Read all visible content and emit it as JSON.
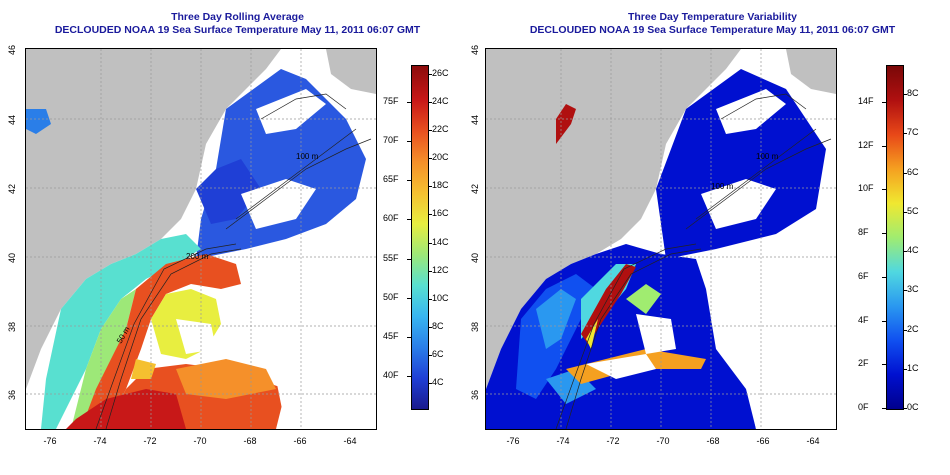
{
  "left_panel": {
    "title_line1": "Three Day Rolling Average",
    "title_line2": "DECLOUDED NOAA 19 Sea Surface Temperature May 11, 2011 06:07 GMT",
    "colorbar_c_labels": [
      "26C",
      "24C",
      "22C",
      "20C",
      "18C",
      "16C",
      "14C",
      "12C",
      "10C",
      "8C",
      "6C",
      "4C"
    ],
    "colorbar_f_labels": [
      "75F",
      "70F",
      "65F",
      "60F",
      "55F",
      "50F",
      "45F",
      "40F"
    ],
    "colors": [
      "#1a1a8c",
      "#1f3fd6",
      "#2a7ee8",
      "#38b6f0",
      "#58e0d0",
      "#9de878",
      "#e8ee40",
      "#f5c030",
      "#f5902a",
      "#e85020",
      "#c81818",
      "#8c0c0c"
    ]
  },
  "right_panel": {
    "title_line1": "Three Day Temperature Variability",
    "title_line2": "DECLOUDED NOAA 19 Sea Surface Temperature May 11, 2011 06:07 GMT",
    "colorbar_c_labels": [
      "8C",
      "7C",
      "6C",
      "5C",
      "4C",
      "3C",
      "2C",
      "1C",
      "0C"
    ],
    "colorbar_f_labels": [
      "14F",
      "12F",
      "10F",
      "8F",
      "6F",
      "4F",
      "2F",
      "0F"
    ],
    "colors": [
      "#00008c",
      "#0010d0",
      "#1050f0",
      "#2a98f0",
      "#50d8e0",
      "#a0ec70",
      "#f0e830",
      "#f5a020",
      "#e84818",
      "#b01010",
      "#7a0808"
    ]
  },
  "x_ticks": [
    "-76",
    "-74",
    "-72",
    "-70",
    "-68",
    "-66",
    "-64"
  ],
  "y_ticks": [
    "36",
    "38",
    "40",
    "42",
    "44",
    "46"
  ],
  "contour_labels": [
    "100 m",
    "200 m",
    "50 m"
  ]
}
